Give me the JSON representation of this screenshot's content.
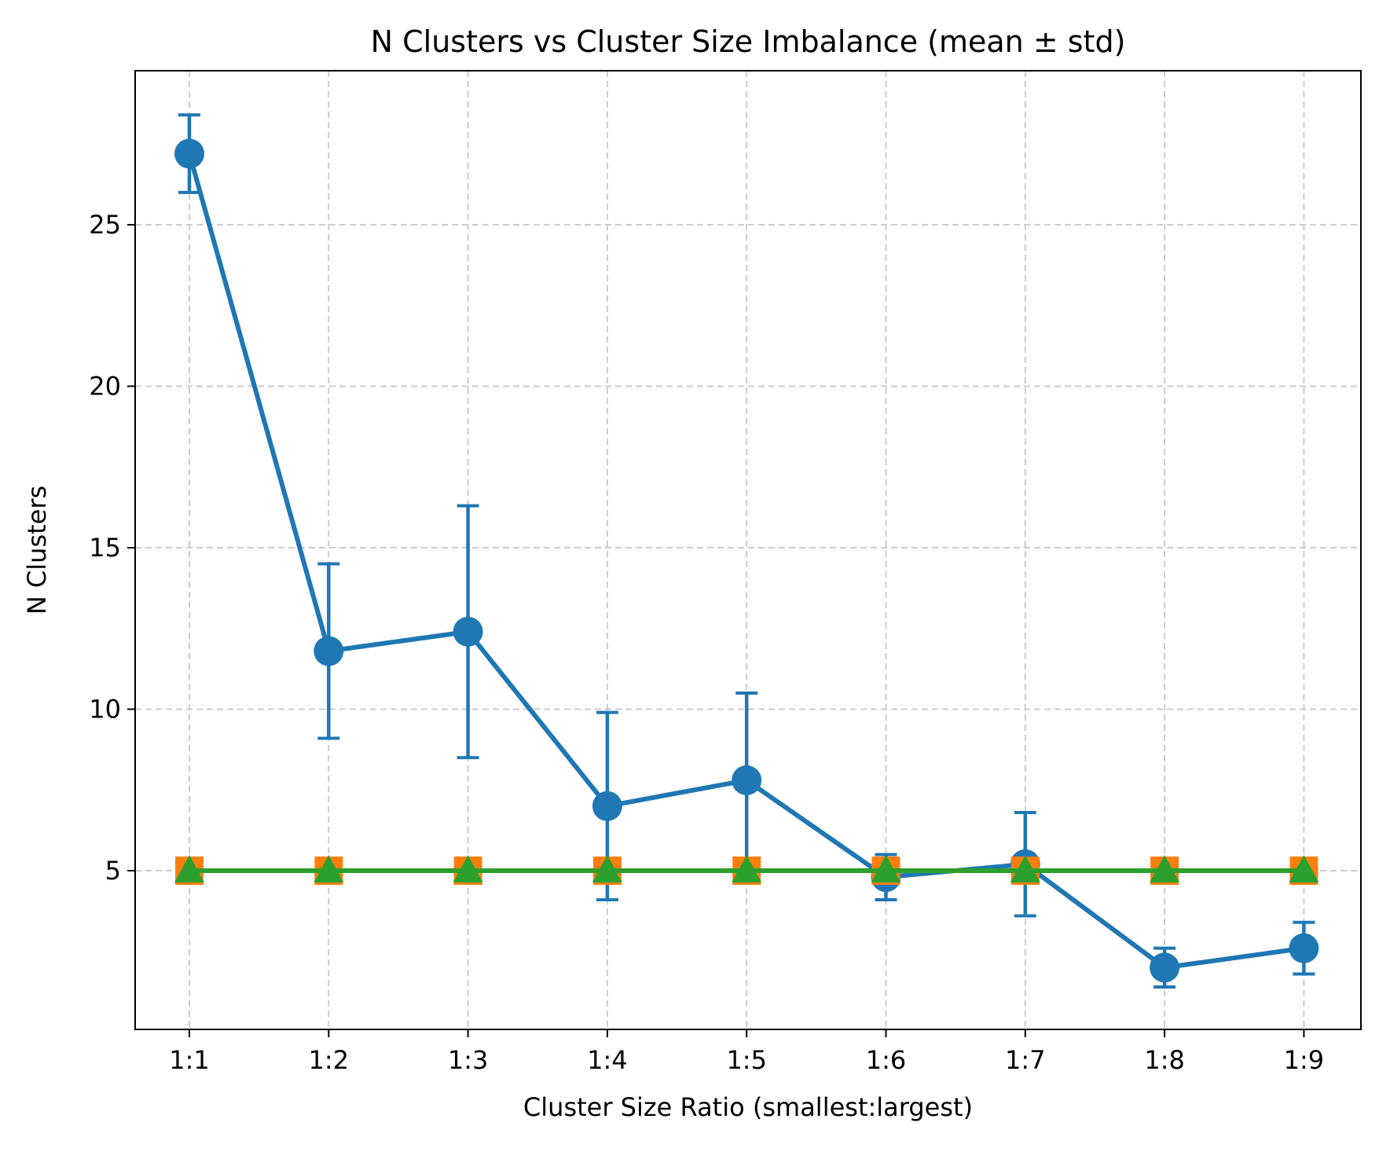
{
  "chart_data": {
    "type": "line",
    "title": "N Clusters vs Cluster Size Imbalance (mean ± std)",
    "xlabel": "Cluster Size Ratio (smallest:largest)",
    "ylabel": "N Clusters",
    "categories": [
      "1:1",
      "1:2",
      "1:3",
      "1:4",
      "1:5",
      "1:6",
      "1:7",
      "1:8",
      "1:9"
    ],
    "ylim": [
      -0.5,
      29.2
    ],
    "yticks": [
      5,
      10,
      15,
      20,
      25
    ],
    "grid": true,
    "series": [
      {
        "color": "#1f77b4",
        "marker": "circle",
        "values": [
          27.2,
          11.8,
          12.4,
          7.0,
          7.8,
          4.8,
          5.2,
          2.0,
          2.6
        ],
        "std": [
          1.2,
          2.7,
          3.9,
          2.9,
          2.7,
          0.7,
          1.6,
          0.6,
          0.8
        ]
      },
      {
        "color": "#ff7f0e",
        "marker": "square",
        "values": [
          5,
          5,
          5,
          5,
          5,
          5,
          5,
          5,
          5
        ]
      },
      {
        "color": "#2ca02c",
        "marker": "triangle",
        "values": [
          5,
          5,
          5,
          5,
          5,
          5,
          5,
          5,
          5
        ]
      }
    ]
  }
}
